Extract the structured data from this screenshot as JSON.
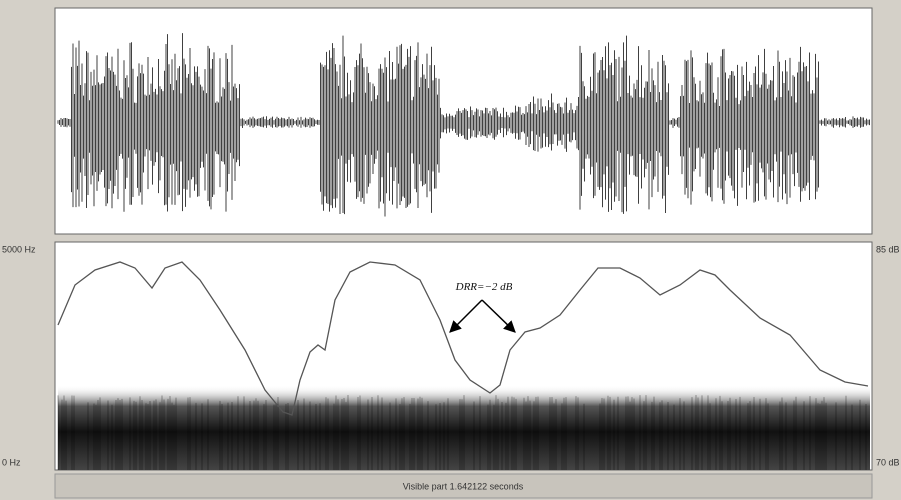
{
  "spectrogram": {
    "freq_top": "5000 Hz",
    "freq_bottom": "0 Hz",
    "db_top": "85 dB",
    "db_bottom": "70 dB"
  },
  "annotation": "DRR=−2 dB",
  "status_bar": "Visible part 1.642122 seconds"
}
